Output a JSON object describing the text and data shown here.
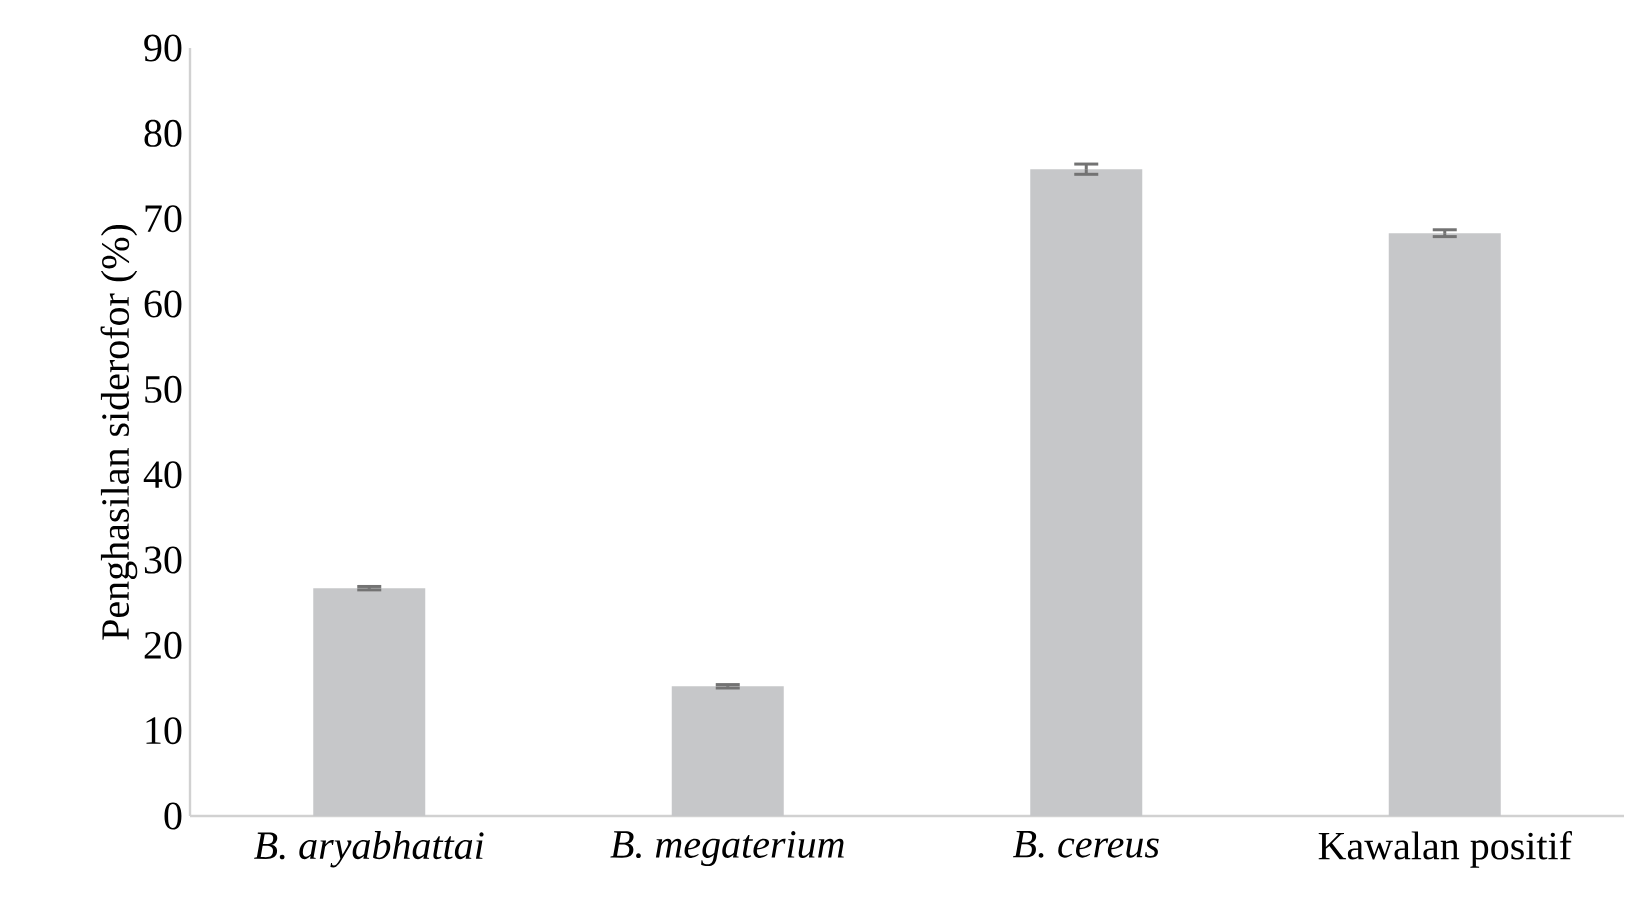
{
  "chart_data": {
    "type": "bar",
    "ylabel": "Penghasilan siderofor (%)",
    "categories": [
      "*B. aryabhattai*",
      "*B. megaterium*",
      "*B. cereus*",
      "Kawalan positif"
    ],
    "values": [
      26.7,
      15.2,
      75.8,
      68.3
    ],
    "errors": [
      0.2,
      0.2,
      0.6,
      0.4
    ],
    "color": "#c6c7c9",
    "ylim": [
      0,
      90
    ],
    "yticks": [
      0,
      10,
      20,
      30,
      40,
      50,
      60,
      70,
      80,
      90
    ],
    "grid": false
  }
}
